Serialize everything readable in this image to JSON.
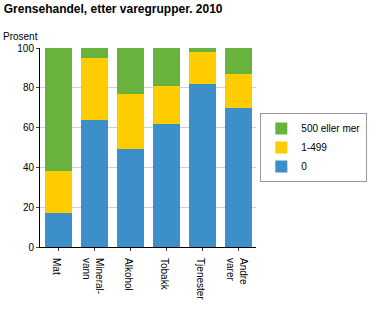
{
  "chart_data": {
    "type": "bar",
    "stacked": true,
    "title": "Grensehandel, etter varegrupper. 2010",
    "ylabel": "Prosent",
    "categories": [
      "Mat",
      "Mineral-\nvann",
      "Alkohol",
      "Tobakk",
      "Tjenester",
      "Andre\nvarer"
    ],
    "series": [
      {
        "name": "0",
        "color": "#3d8fc9",
        "values": [
          17,
          64,
          49,
          62,
          82,
          70
        ]
      },
      {
        "name": "1-499",
        "color": "#ffcc00",
        "values": [
          21,
          31,
          28,
          19,
          16,
          17
        ]
      },
      {
        "name": "500 eller mer",
        "color": "#6ab23e",
        "values": [
          62,
          5,
          23,
          19,
          2,
          13
        ]
      }
    ],
    "ylim": [
      0,
      100
    ],
    "yticks": [
      0,
      20,
      40,
      60,
      80,
      100
    ],
    "grid": true,
    "legend": "right"
  }
}
